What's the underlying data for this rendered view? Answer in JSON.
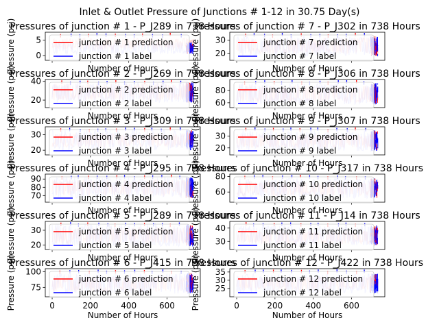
{
  "figure": {
    "title": "Inlet & Outlet Pressure of Junctions # 1-12 in 30.75 Day(s)"
  },
  "colors": {
    "prediction": "#ff0000",
    "label": "#0000ff",
    "prediction_fill": "#ffc8c8",
    "label_fill": "#c8c8ff"
  },
  "chart_data": [
    {
      "type": "line",
      "title": "Pressures of junction # 1 - P_J289 in 738 Hours",
      "xlabel": "Number of Hours",
      "ylabel": "Pressure (psi)",
      "xlim": [
        -36,
        774
      ],
      "ylim": [
        -1.5,
        7.5
      ],
      "yticks": [
        0,
        5
      ],
      "xticks": [
        0,
        200,
        400,
        600
      ],
      "show_xticklabels": false,
      "band": {
        "prediction": [
          2.0,
          5.6
        ],
        "label": [
          0.5,
          4.3
        ]
      },
      "series": [
        {
          "name": "junction # 1 prediction",
          "color": "#ff0000"
        },
        {
          "name": "junction # 1 label",
          "color": "#0000ff"
        }
      ]
    },
    {
      "type": "line",
      "title": "Pressures of junction # 7 - P_J302 in 738 Hours",
      "xlabel": "Number of Hours",
      "ylabel": "Pressure (psi)",
      "xlim": [
        -36,
        774
      ],
      "ylim": [
        15,
        36
      ],
      "yticks": [
        20,
        30
      ],
      "xticks": [
        0,
        200,
        400,
        600
      ],
      "show_xticklabels": false,
      "band": {
        "prediction": [
          20,
          32
        ],
        "label": [
          18,
          33
        ]
      },
      "series": [
        {
          "name": "junction # 7 prediction",
          "color": "#ff0000"
        },
        {
          "name": "junction # 7 label",
          "color": "#0000ff"
        }
      ]
    },
    {
      "type": "line",
      "title": "Pressures of junction # 2 - P_J269 in 738 Hours",
      "xlabel": "Number of Hours",
      "ylabel": "Pressure (psi)",
      "xlim": [
        -36,
        774
      ],
      "ylim": [
        12,
        42
      ],
      "yticks": [
        20,
        40
      ],
      "xticks": [
        0,
        200,
        400,
        600
      ],
      "show_xticklabels": false,
      "band": {
        "prediction": [
          20,
          38
        ],
        "label": [
          17,
          39
        ]
      },
      "series": [
        {
          "name": "junction # 2 prediction",
          "color": "#ff0000"
        },
        {
          "name": "junction # 2 label",
          "color": "#0000ff"
        }
      ]
    },
    {
      "type": "line",
      "title": "Pressures of junction # 8 - P_J306 in 738 Hours",
      "xlabel": "Number of Hours",
      "ylabel": "Pressure (psi)",
      "xlim": [
        -36,
        774
      ],
      "ylim": [
        52,
        98
      ],
      "yticks": [
        60,
        80
      ],
      "xticks": [
        0,
        200,
        400,
        600
      ],
      "show_xticklabels": false,
      "band": {
        "prediction": [
          60,
          88
        ],
        "label": [
          57,
          92
        ]
      },
      "series": [
        {
          "name": "junction # 8 prediction",
          "color": "#ff0000"
        },
        {
          "name": "junction # 8 label",
          "color": "#0000ff"
        }
      ]
    },
    {
      "type": "line",
      "title": "Pressures of junction # 3 - P_J309 in 738 Hours",
      "xlabel": "Number of Hours",
      "ylabel": "Pressure (psi)",
      "xlim": [
        -36,
        774
      ],
      "ylim": [
        17,
        35
      ],
      "yticks": [
        20,
        30
      ],
      "xticks": [
        0,
        200,
        400,
        600
      ],
      "show_xticklabels": false,
      "band": {
        "prediction": [
          22,
          31
        ],
        "label": [
          20,
          33
        ]
      },
      "series": [
        {
          "name": "junction # 3 prediction",
          "color": "#ff0000"
        },
        {
          "name": "junction # 3 label",
          "color": "#0000ff"
        }
      ]
    },
    {
      "type": "line",
      "title": "Pressures of junction # 9 - P_J307 in 738 Hours",
      "xlabel": "Number of Hours",
      "ylabel": "Pressure (psi)",
      "xlim": [
        -36,
        774
      ],
      "ylim": [
        14,
        38
      ],
      "yticks": [
        20,
        30
      ],
      "xticks": [
        0,
        200,
        400,
        600
      ],
      "show_xticklabels": false,
      "band": {
        "prediction": [
          20,
          32
        ],
        "label": [
          17,
          35
        ]
      },
      "series": [
        {
          "name": "junction # 9 prediction",
          "color": "#ff0000"
        },
        {
          "name": "junction # 9 label",
          "color": "#0000ff"
        }
      ]
    },
    {
      "type": "line",
      "title": "Pressures of junction # 4 - P_J295 in 738 Hours",
      "xlabel": "Number of Hours",
      "ylabel": "Pressure (psi)",
      "xlim": [
        -36,
        774
      ],
      "ylim": [
        62,
        96
      ],
      "yticks": [
        70,
        80,
        90
      ],
      "xticks": [
        0,
        200,
        400,
        600
      ],
      "show_xticklabels": false,
      "band": {
        "prediction": [
          70,
          89
        ],
        "label": [
          67,
          92
        ]
      },
      "series": [
        {
          "name": "junction # 4 prediction",
          "color": "#ff0000"
        },
        {
          "name": "junction # 4 label",
          "color": "#0000ff"
        }
      ]
    },
    {
      "type": "line",
      "title": "Pressures of junction # 10 - P_J317 in 738 Hours",
      "xlabel": "Number of Hours",
      "ylabel": "Pressure (psi)",
      "xlim": [
        -36,
        774
      ],
      "ylim": [
        47,
        83
      ],
      "yticks": [
        60,
        80
      ],
      "xticks": [
        0,
        200,
        400,
        600
      ],
      "show_xticklabels": false,
      "band": {
        "prediction": [
          55,
          74
        ],
        "label": [
          52,
          78
        ]
      },
      "series": [
        {
          "name": "junction # 10 prediction",
          "color": "#ff0000"
        },
        {
          "name": "junction # 10 label",
          "color": "#0000ff"
        }
      ]
    },
    {
      "type": "line",
      "title": "Pressures of junction # 5 - P_J289 in 738 Hours",
      "xlabel": "Number of Hours",
      "ylabel": "Pressure (psi)",
      "xlim": [
        -36,
        774
      ],
      "ylim": [
        17,
        36
      ],
      "yticks": [
        20,
        30
      ],
      "xticks": [
        0,
        200,
        400,
        600
      ],
      "show_xticklabels": false,
      "band": {
        "prediction": [
          21,
          32
        ],
        "label": [
          19,
          34
        ]
      },
      "series": [
        {
          "name": "junction # 5 prediction",
          "color": "#ff0000"
        },
        {
          "name": "junction # 5 label",
          "color": "#0000ff"
        }
      ]
    },
    {
      "type": "line",
      "title": "Pressures of junction # 11 - P_J14 in 738 Hours",
      "xlabel": "Number of Hours",
      "ylabel": "Pressure (psi)",
      "xlim": [
        -36,
        774
      ],
      "ylim": [
        24,
        45
      ],
      "yticks": [
        30,
        40
      ],
      "xticks": [
        0,
        200,
        400,
        600
      ],
      "show_xticklabels": false,
      "band": {
        "prediction": [
          28,
          38
        ],
        "label": [
          27,
          42
        ]
      },
      "series": [
        {
          "name": "junction # 11 prediction",
          "color": "#ff0000"
        },
        {
          "name": "junction # 11 label",
          "color": "#0000ff"
        }
      ]
    },
    {
      "type": "line",
      "title": "Pressures of junction # 6 - P_J415 in 738 Hours",
      "xlabel": "Number of Hours",
      "ylabel": "Pressure (psi)",
      "xlim": [
        -36,
        774
      ],
      "ylim": [
        60,
        105
      ],
      "yticks": [
        75,
        100
      ],
      "xticks": [
        0,
        200,
        400,
        600
      ],
      "show_xticklabels": true,
      "band": {
        "prediction": [
          68,
          92
        ],
        "label": [
          65,
          98
        ]
      },
      "series": [
        {
          "name": "junction # 6 prediction",
          "color": "#ff0000"
        },
        {
          "name": "junction # 6 label",
          "color": "#0000ff"
        }
      ]
    },
    {
      "type": "line",
      "title": "Pressures of junction # 12 - P_J422 in 738 Hours",
      "xlabel": "Number of Hours",
      "ylabel": "Pressure (psi)",
      "xlim": [
        -36,
        774
      ],
      "ylim": [
        20,
        37
      ],
      "yticks": [
        25,
        30,
        35
      ],
      "xticks": [
        0,
        200,
        400,
        600
      ],
      "show_xticklabels": true,
      "band": {
        "prediction": [
          24,
          32
        ],
        "label": [
          22,
          34
        ]
      },
      "series": [
        {
          "name": "junction # 12 prediction",
          "color": "#ff0000"
        },
        {
          "name": "junction # 12 label",
          "color": "#0000ff"
        }
      ]
    }
  ]
}
